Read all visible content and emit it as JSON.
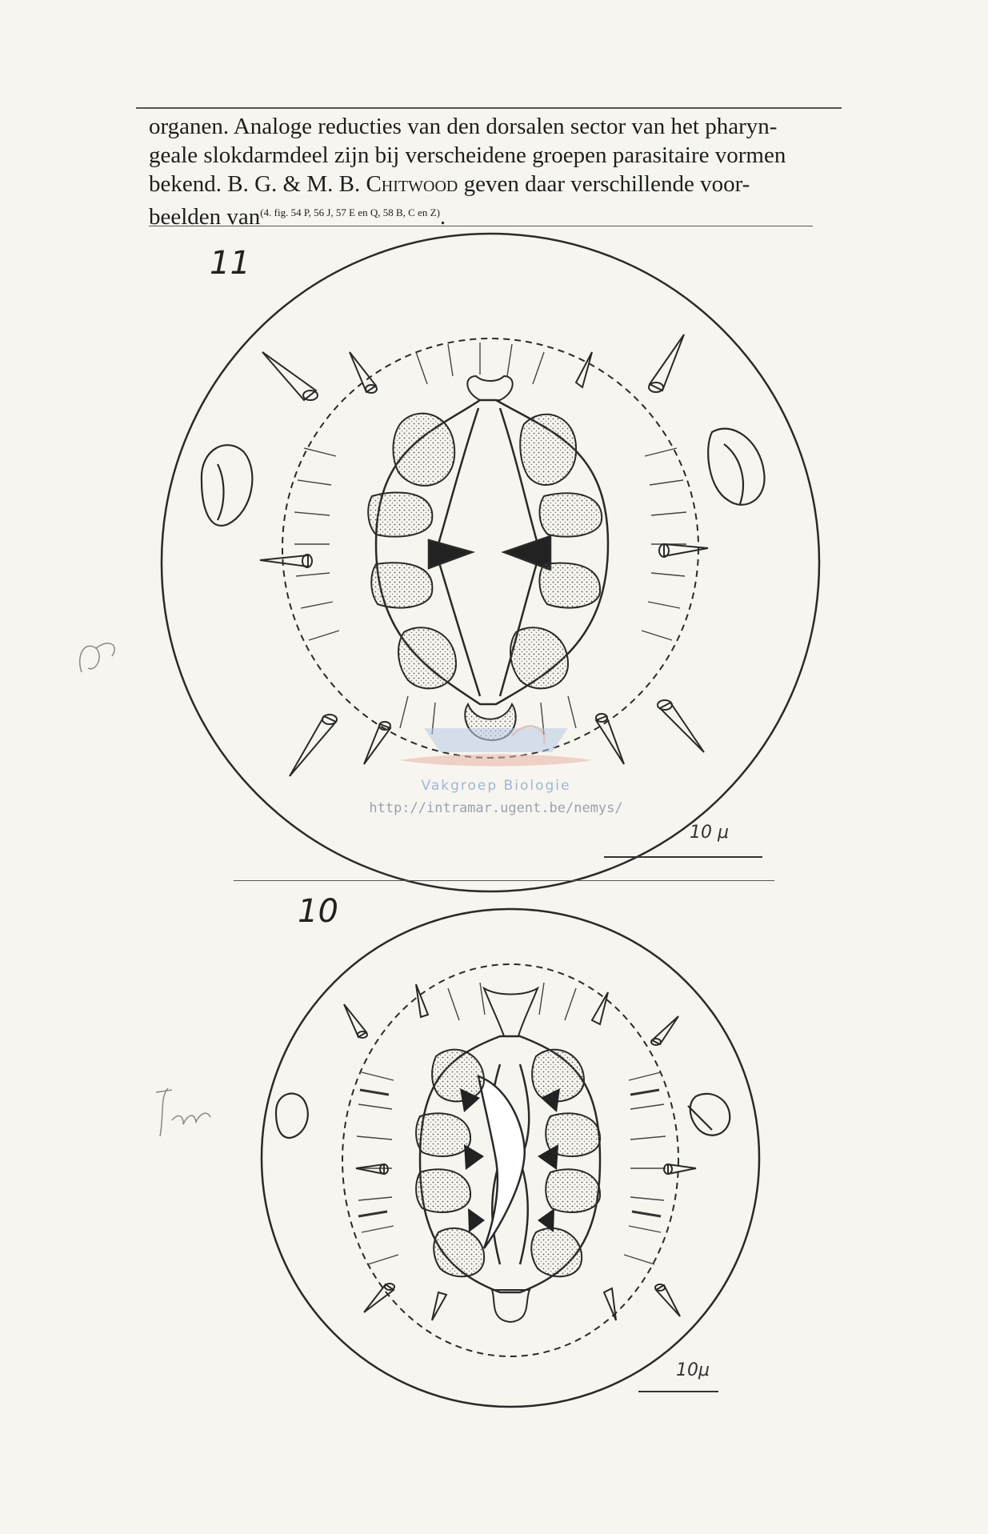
{
  "text": {
    "line1": "organen. Analoge reducties van den dorsalen sector van het pharyn-",
    "line2": "geale slokdarmdeel zijn bij verscheidene groepen parasitaire vormen",
    "line3_pre": "bekend. B. G. & M. B. ",
    "line3_name": "Chitwood",
    "line3_post": " geven daar verschillende voor-",
    "line4_pre": "beelden van",
    "line4_ref": "(4. fig. 54 P, 56 J, 57 E en Q, 58 B, C en Z)",
    "line4_post": "."
  },
  "figure11": {
    "number": "11",
    "scale_label": "10 μ"
  },
  "figure10": {
    "number": "10",
    "scale_label": "10μ"
  },
  "watermark": {
    "label": "Vakgroep Biologie",
    "url": "http://intramar.ugent.be/nemys/"
  },
  "colors": {
    "ink": "#2a2a2a",
    "paper": "#f7f5ef",
    "watermark_blue": "#9fb6d8"
  }
}
